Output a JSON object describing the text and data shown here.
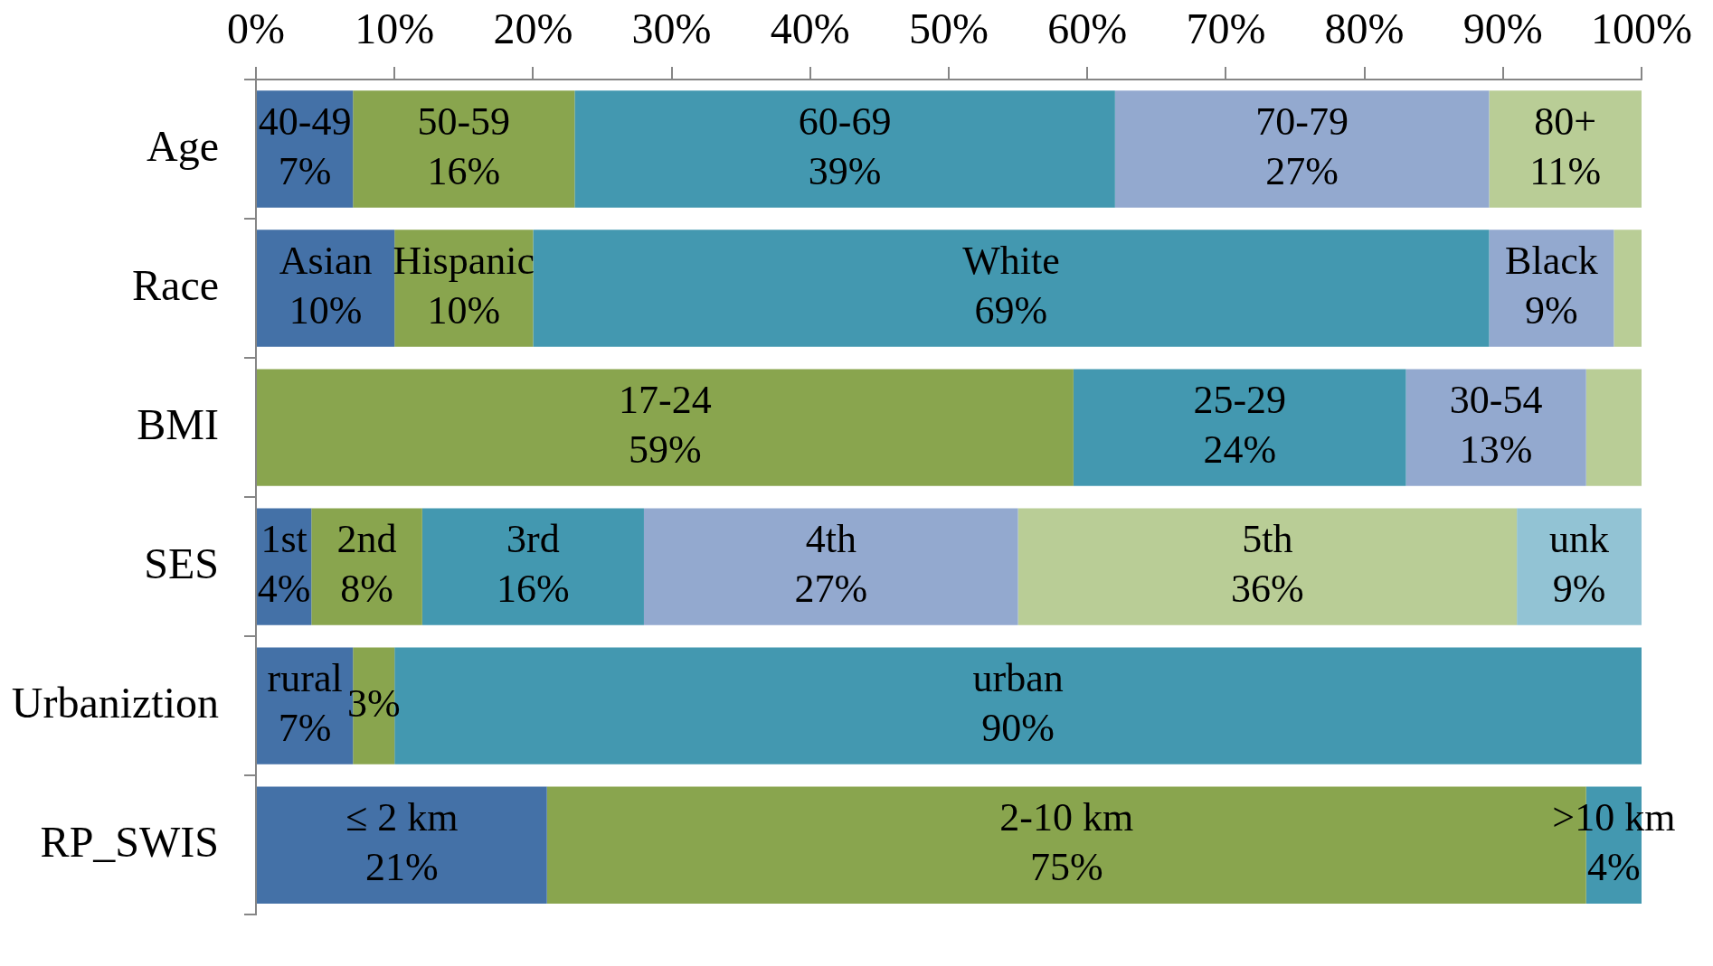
{
  "chart_data": {
    "type": "bar",
    "orientation": "horizontal",
    "stacked": true,
    "categories": [
      "Age",
      "Race",
      "BMI",
      "SES",
      "Urbaniztion",
      "RP_SWIS"
    ],
    "xlim": [
      0,
      100
    ],
    "xticks": [
      {
        "value": 0,
        "label": "0%"
      },
      {
        "value": 10,
        "label": "10%"
      },
      {
        "value": 20,
        "label": "20%"
      },
      {
        "value": 30,
        "label": "30%"
      },
      {
        "value": 40,
        "label": "40%"
      },
      {
        "value": 50,
        "label": "50%"
      },
      {
        "value": 60,
        "label": "60%"
      },
      {
        "value": 70,
        "label": "70%"
      },
      {
        "value": 80,
        "label": "80%"
      },
      {
        "value": 90,
        "label": "90%"
      },
      {
        "value": 100,
        "label": "100%"
      }
    ],
    "series": [
      {
        "color": "#4471a7",
        "values": [
          7,
          10,
          null,
          4,
          7,
          21
        ],
        "value_labels": [
          "40-49\n7%",
          "Asian\n10%",
          null,
          "1st\n4%",
          "rural\n7%",
          "≤ 2 km\n21%"
        ]
      },
      {
        "color": "#89a54e",
        "values": [
          16,
          10,
          59,
          8,
          3,
          75
        ],
        "value_labels": [
          "50-59\n16%",
          "Hispanic\n10%",
          "17-24\n59%",
          "2nd\n8%",
          "3%",
          "2-10 km\n75%"
        ]
      },
      {
        "color": "#4398b0",
        "values": [
          39,
          69,
          24,
          16,
          90,
          4
        ],
        "value_labels": [
          "60-69\n39%",
          "White\n69%",
          "25-29\n24%",
          "3rd\n16%",
          "urban\n90%",
          ">10 km\n4%"
        ]
      },
      {
        "color": "#93a9cf",
        "values": [
          27,
          9,
          13,
          27,
          null,
          null
        ],
        "value_labels": [
          "70-79\n27%",
          "Black\n9%",
          "30-54\n13%",
          "4th\n27%",
          null,
          null
        ]
      },
      {
        "color": "#b9cd96",
        "values": [
          11,
          2,
          4,
          36,
          null,
          null
        ],
        "value_labels": [
          "80+\n11%",
          null,
          null,
          "5th\n36%",
          null,
          null
        ]
      },
      {
        "color": "#92c3d4",
        "values": [
          null,
          null,
          null,
          9,
          null,
          null
        ],
        "value_labels": [
          null,
          null,
          null,
          "unk\n9%",
          null,
          null
        ]
      }
    ]
  }
}
